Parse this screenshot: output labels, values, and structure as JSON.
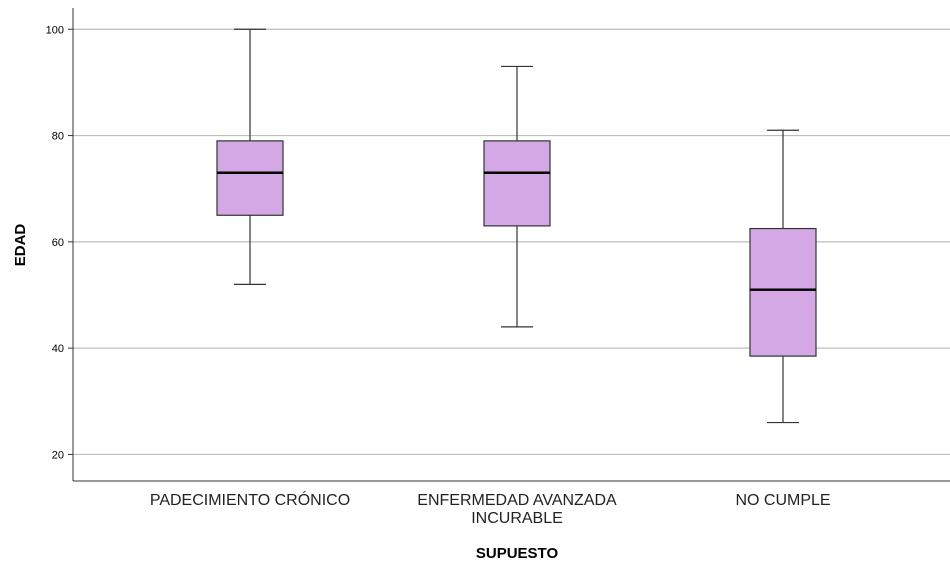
{
  "chart_data": {
    "type": "boxplot",
    "title": "",
    "xlabel": "SUPUESTO",
    "ylabel": "EDAD",
    "ylim": [
      15,
      104
    ],
    "yticks": [
      20,
      40,
      60,
      80,
      100
    ],
    "grid": "horizontal",
    "box_color": "#d3a8e5",
    "box_edge_color": "#333333",
    "median_color": "#000000",
    "categories": [
      {
        "label_lines": [
          "PADECIMIENTO CRÓNICO"
        ],
        "whisker_low": 52,
        "q1": 65,
        "median": 73,
        "q3": 79,
        "whisker_high": 100
      },
      {
        "label_lines": [
          "ENFERMEDAD AVANZADA",
          "INCURABLE"
        ],
        "whisker_low": 44,
        "q1": 63,
        "median": 73,
        "q3": 79,
        "whisker_high": 93
      },
      {
        "label_lines": [
          "NO CUMPLE"
        ],
        "whisker_low": 26,
        "q1": 38.5,
        "median": 51,
        "q3": 62.5,
        "whisker_high": 81
      }
    ]
  }
}
